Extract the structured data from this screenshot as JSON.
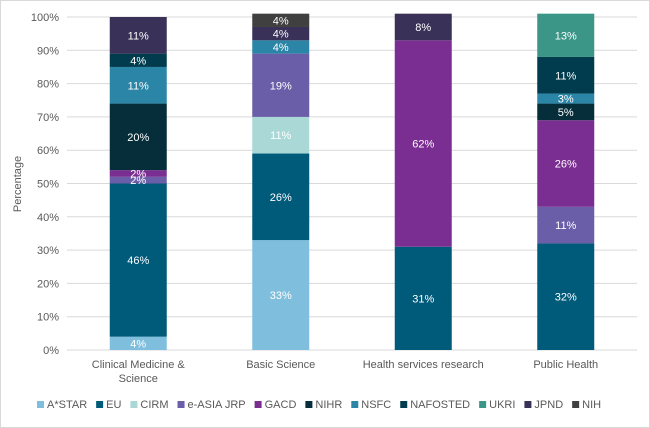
{
  "chart_data": {
    "type": "bar",
    "stacked": true,
    "title": "",
    "xlabel": "",
    "ylabel": "Percentage",
    "ylim": [
      0,
      100
    ],
    "y_ticks": [
      "0%",
      "10%",
      "20%",
      "30%",
      "40%",
      "50%",
      "60%",
      "70%",
      "80%",
      "90%",
      "100%"
    ],
    "grid": true,
    "legend_position": "bottom",
    "categories": [
      {
        "line1": "Clinical Medicine &",
        "line2": "Science"
      },
      {
        "line1": "Basic Science",
        "line2": ""
      },
      {
        "line1": "Health services research",
        "line2": ""
      },
      {
        "line1": "Public Health",
        "line2": ""
      }
    ],
    "series": [
      {
        "name": "A*STAR",
        "color": "#7fbfdd",
        "label_color": "#ffffff",
        "values": [
          4,
          33,
          0,
          0
        ],
        "labels": [
          "4%",
          "33%",
          "",
          ""
        ]
      },
      {
        "name": "EU",
        "color": "#005a7a",
        "label_color": "#ffffff",
        "values": [
          46,
          26,
          31,
          32
        ],
        "labels": [
          "46%",
          "26%",
          "31%",
          "32%"
        ]
      },
      {
        "name": "CIRM",
        "color": "#a9d8d6",
        "label_color": "#ffffff",
        "values": [
          0,
          11,
          0,
          0
        ],
        "labels": [
          "",
          "11%",
          "",
          ""
        ]
      },
      {
        "name": "e-ASIA JRP",
        "color": "#6b5ea8",
        "label_color": "#ffffff",
        "values": [
          2,
          19,
          0,
          11
        ],
        "labels": [
          "2%",
          "19%",
          "",
          "11%"
        ]
      },
      {
        "name": "GACD",
        "color": "#7b2e91",
        "label_color": "#ffffff",
        "values": [
          2,
          0,
          62,
          26
        ],
        "labels": [
          "2%",
          "",
          "62%",
          "26%"
        ]
      },
      {
        "name": "NIHR",
        "color": "#052d3a",
        "label_color": "#ffffff",
        "values": [
          20,
          0,
          0,
          5
        ],
        "labels": [
          "20%",
          "",
          "",
          "5%"
        ]
      },
      {
        "name": "NSFC",
        "color": "#2b85a6",
        "label_color": "#ffffff",
        "values": [
          11,
          4,
          0,
          3
        ],
        "labels": [
          "11%",
          "4%",
          "",
          "3%"
        ]
      },
      {
        "name": "NAFOSTED",
        "color": "#003b4e",
        "label_color": "#ffffff",
        "values": [
          4,
          0,
          0,
          11
        ],
        "labels": [
          "4%",
          "",
          "",
          "11%"
        ]
      },
      {
        "name": "UKRI",
        "color": "#3c9687",
        "label_color": "#ffffff",
        "values": [
          0,
          0,
          0,
          13
        ],
        "labels": [
          "",
          "",
          "",
          "13%"
        ]
      },
      {
        "name": "JPND",
        "color": "#3a3158",
        "label_color": "#ffffff",
        "values": [
          11,
          4,
          8,
          0
        ],
        "labels": [
          "11%",
          "4%",
          "8%",
          ""
        ]
      },
      {
        "name": "NIH",
        "color": "#404040",
        "label_color": "#ffffff",
        "values": [
          0,
          4,
          0,
          0
        ],
        "labels": [
          "",
          "4%",
          "",
          ""
        ]
      }
    ]
  }
}
